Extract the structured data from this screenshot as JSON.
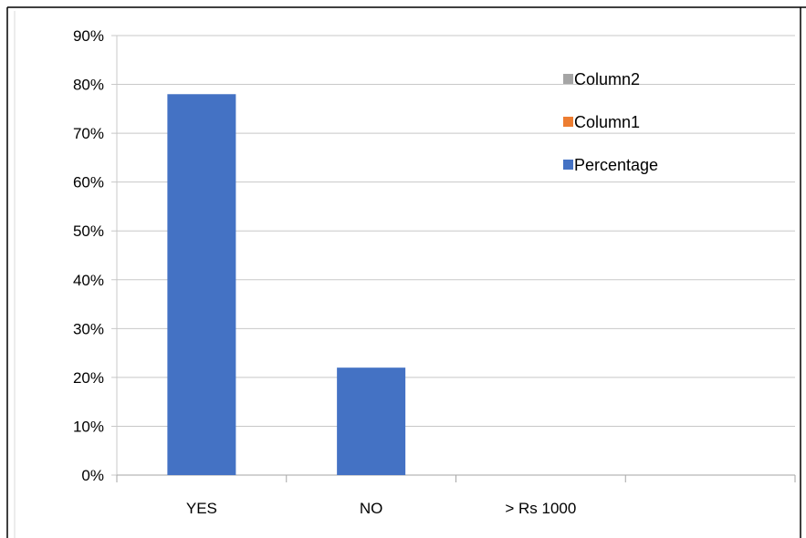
{
  "chart_data": {
    "type": "bar",
    "title": "",
    "xlabel": "",
    "ylabel": "",
    "categories": [
      "YES",
      "NO",
      "> Rs 1000",
      ""
    ],
    "series": [
      {
        "name": "Percentage",
        "values": [
          78,
          22,
          null,
          null
        ],
        "color": "#4472C4"
      },
      {
        "name": "Column1",
        "values": [
          null,
          null,
          null,
          null
        ],
        "color": "#ED7D31"
      },
      {
        "name": "Column2",
        "values": [
          null,
          null,
          null,
          null
        ],
        "color": "#A5A5A5"
      }
    ],
    "ylim": [
      0,
      90
    ],
    "yticks": [
      0,
      10,
      20,
      30,
      40,
      50,
      60,
      70,
      80,
      90
    ],
    "ytick_suffix": "%",
    "grid": true,
    "legend": {
      "position": "top-right",
      "order": [
        "Column2",
        "Column1",
        "Percentage"
      ]
    }
  }
}
